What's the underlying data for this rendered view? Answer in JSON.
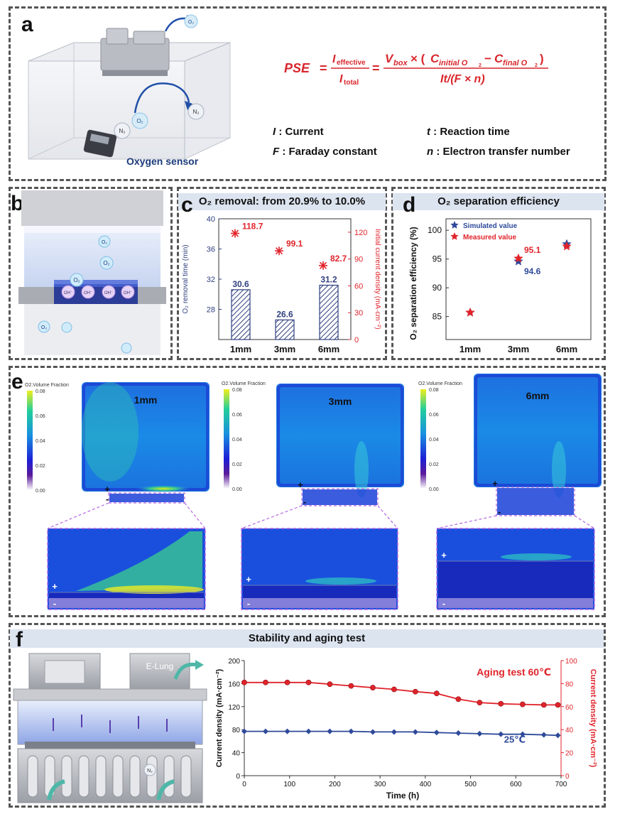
{
  "panel_a": {
    "label": "a",
    "sensor_label": "Oxygen sensor",
    "bubble_o2": "O₂",
    "bubble_n2": "N₂",
    "bubble_top": "O₂",
    "formula_lhs": "PSE",
    "formula_frac1_num": "I",
    "formula_frac1_num_sub": "effective",
    "formula_frac1_den": "I",
    "formula_frac1_den_sub": "total",
    "formula_frac2_num": "V",
    "formula_frac2_num_sub": "box",
    "formula_c_initial": "initial O",
    "formula_c_final": "final O",
    "formula_frac2_den": "It/(F × n)",
    "defs": [
      {
        "sym": "I",
        "text": " : Current"
      },
      {
        "sym": "t",
        "text": " : Reaction time"
      },
      {
        "sym": "F",
        "text": " : Faraday constant"
      },
      {
        "sym": "n",
        "text": " : Electron transfer number"
      }
    ]
  },
  "panel_b": {
    "label": "b",
    "o2": "O₂",
    "oh": "OH⁻"
  },
  "panel_c": {
    "label": "c",
    "title": "O₂ removal: from 20.9% to 10.0%"
  },
  "panel_d": {
    "label": "d",
    "title": "O₂ separation efficiency"
  },
  "panel_e": {
    "label": "e",
    "colorbar_title": "O2.Volume Fraction",
    "colorbar_ticks": [
      "0.08",
      "0.06",
      "0.04",
      "0.02",
      "0.00"
    ],
    "thickness_labels": [
      "1mm",
      "3mm",
      "6mm"
    ],
    "plus": "+",
    "minus": "-"
  },
  "panel_f": {
    "label": "f",
    "title": "Stability and aging test",
    "bubble": "N₂",
    "brand": "E-Lung"
  },
  "chart_data": [
    {
      "id": "c",
      "type": "bar",
      "title": "O₂ removal: from 20.9% to 10.0%",
      "categories": [
        "1mm",
        "3mm",
        "6mm"
      ],
      "ylabel": "O₂ removal time (min)",
      "ylim": [
        24,
        40
      ],
      "yticks": [
        28,
        32,
        36,
        40
      ],
      "series": [
        {
          "name": "O₂ removal time",
          "values": [
            30.6,
            26.6,
            31.2
          ],
          "color": "#2f3f7f"
        }
      ],
      "y2label": "Initial current density (mA·cm⁻²)",
      "y2lim": [
        0,
        135
      ],
      "y2ticks": [
        0,
        30,
        60,
        90,
        120
      ],
      "series2": [
        {
          "name": "Initial current density",
          "values": [
            118.7,
            99.1,
            82.7
          ],
          "color": "#e0242b"
        }
      ],
      "bar_labels": [
        "30.6",
        "26.6",
        "31.2"
      ],
      "point_labels": [
        "118.7",
        "99.1",
        "82.7"
      ]
    },
    {
      "id": "d",
      "type": "scatter",
      "title": "O₂ separation efficiency",
      "categories": [
        "1mm",
        "3mm",
        "6mm"
      ],
      "ylabel": "O₂ separation efficiency (%)",
      "ylim": [
        81,
        102
      ],
      "yticks": [
        85,
        90,
        95,
        100
      ],
      "legend": "top-left",
      "series": [
        {
          "name": "Simulated value",
          "values": [
            85.7,
            94.6,
            97.6
          ],
          "color": "#2f4a9a"
        },
        {
          "name": "Measured value",
          "values": [
            85.7,
            95.1,
            97.2
          ],
          "color": "#e0242b"
        }
      ],
      "annotations": [
        {
          "text": "95.1",
          "color": "#e0242b"
        },
        {
          "text": "94.6",
          "color": "#2f4a9a"
        }
      ]
    },
    {
      "id": "f",
      "type": "line",
      "xlabel": "Time (h)",
      "xlim": [
        0,
        700
      ],
      "xticks": [
        0,
        100,
        200,
        300,
        400,
        500,
        600,
        700
      ],
      "ylabel": "Current density (mA·cm⁻²)",
      "ylim": [
        0,
        200
      ],
      "yticks": [
        0,
        40,
        80,
        120,
        160,
        200
      ],
      "y2label": "Current density (mA·cm⁻²)",
      "y2lim": [
        0,
        100
      ],
      "y2ticks": [
        0,
        20,
        40,
        60,
        80,
        100
      ],
      "series": [
        {
          "name": "25℃",
          "axis": "left",
          "color": "#2f4a9a",
          "x": [
            0,
            47,
            95,
            142,
            189,
            236,
            284,
            331,
            378,
            425,
            473,
            520,
            567,
            615,
            662,
            693
          ],
          "y": [
            77,
            77,
            77,
            77,
            77,
            77,
            76,
            76,
            76,
            75,
            74,
            73,
            72,
            72,
            71,
            70
          ]
        },
        {
          "name": "Aging test  60℃",
          "axis": "right",
          "color": "#e0242b",
          "x": [
            0,
            47,
            95,
            142,
            189,
            236,
            284,
            331,
            378,
            425,
            473,
            520,
            567,
            615,
            662,
            693
          ],
          "y": [
            81,
            81,
            81,
            81,
            79.5,
            78,
            76.5,
            75,
            73,
            71.5,
            66.5,
            63.5,
            62.5,
            62,
            61.5,
            61.5
          ]
        }
      ]
    }
  ]
}
